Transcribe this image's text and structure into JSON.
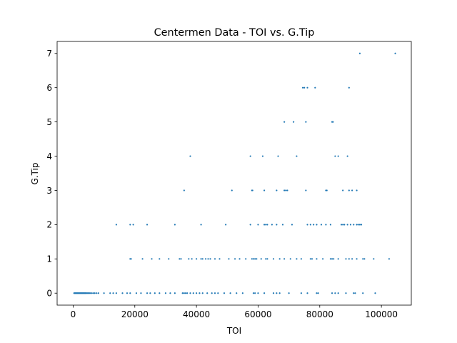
{
  "chart_data": {
    "type": "scatter",
    "title": "Centermen Data - TOI vs. G.Tip",
    "xlabel": "TOI",
    "ylabel": "G.Tip",
    "xlim": [
      -5200,
      109700
    ],
    "ylim": [
      -0.35,
      7.35
    ],
    "xticks": [
      0,
      20000,
      40000,
      60000,
      80000,
      100000
    ],
    "yticks": [
      0,
      1,
      2,
      3,
      4,
      5,
      6,
      7
    ],
    "grid": false,
    "marker_color": "#1f77b4",
    "series": [
      {
        "points": [
          [
            300,
            0
          ],
          [
            500,
            0
          ],
          [
            700,
            0
          ],
          [
            900,
            0
          ],
          [
            1100,
            0
          ],
          [
            1300,
            0
          ],
          [
            1500,
            0
          ],
          [
            1700,
            0
          ],
          [
            1900,
            0
          ],
          [
            2100,
            0
          ],
          [
            2300,
            0
          ],
          [
            2500,
            0
          ],
          [
            2700,
            0
          ],
          [
            2900,
            0
          ],
          [
            3100,
            0
          ],
          [
            3300,
            0
          ],
          [
            3500,
            0
          ],
          [
            3700,
            0
          ],
          [
            3900,
            0
          ],
          [
            4100,
            0
          ],
          [
            4300,
            0
          ],
          [
            4600,
            0
          ],
          [
            4900,
            0
          ],
          [
            5200,
            0
          ],
          [
            5500,
            0
          ],
          [
            6000,
            0
          ],
          [
            6500,
            0
          ],
          [
            7000,
            0
          ],
          [
            7600,
            0
          ],
          [
            8200,
            0
          ],
          [
            10000,
            0
          ],
          [
            12000,
            0
          ],
          [
            13000,
            0
          ],
          [
            14000,
            0
          ],
          [
            16000,
            0
          ],
          [
            17500,
            0
          ],
          [
            18500,
            0
          ],
          [
            20500,
            0
          ],
          [
            22000,
            0
          ],
          [
            24000,
            0
          ],
          [
            25000,
            0
          ],
          [
            26500,
            0
          ],
          [
            28000,
            0
          ],
          [
            30000,
            0
          ],
          [
            31500,
            0
          ],
          [
            33000,
            0
          ],
          [
            35500,
            0
          ],
          [
            36000,
            0
          ],
          [
            36500,
            0
          ],
          [
            37000,
            0
          ],
          [
            38000,
            0
          ],
          [
            39000,
            0
          ],
          [
            40000,
            0
          ],
          [
            41000,
            0
          ],
          [
            42000,
            0
          ],
          [
            43500,
            0
          ],
          [
            45000,
            0
          ],
          [
            46000,
            0
          ],
          [
            47000,
            0
          ],
          [
            49000,
            0
          ],
          [
            51000,
            0
          ],
          [
            53000,
            0
          ],
          [
            55000,
            0
          ],
          [
            58500,
            0
          ],
          [
            59000,
            0
          ],
          [
            60000,
            0
          ],
          [
            62000,
            0
          ],
          [
            65000,
            0
          ],
          [
            66000,
            0
          ],
          [
            67000,
            0
          ],
          [
            70000,
            0
          ],
          [
            74000,
            0
          ],
          [
            76000,
            0
          ],
          [
            79000,
            0
          ],
          [
            79500,
            0
          ],
          [
            84000,
            0
          ],
          [
            85000,
            0
          ],
          [
            86000,
            0
          ],
          [
            88500,
            0
          ],
          [
            91000,
            0
          ],
          [
            91500,
            0
          ],
          [
            94000,
            0
          ],
          [
            98000,
            0
          ],
          [
            18500,
            1
          ],
          [
            18800,
            1
          ],
          [
            22500,
            1
          ],
          [
            25500,
            1
          ],
          [
            28000,
            1
          ],
          [
            31000,
            1
          ],
          [
            34500,
            1
          ],
          [
            35000,
            1
          ],
          [
            37500,
            1
          ],
          [
            38500,
            1
          ],
          [
            40000,
            1
          ],
          [
            41500,
            1
          ],
          [
            42000,
            1
          ],
          [
            43000,
            1
          ],
          [
            43800,
            1
          ],
          [
            44500,
            1
          ],
          [
            46000,
            1
          ],
          [
            47500,
            1
          ],
          [
            50500,
            1
          ],
          [
            52500,
            1
          ],
          [
            54000,
            1
          ],
          [
            56000,
            1
          ],
          [
            58000,
            1
          ],
          [
            58500,
            1
          ],
          [
            59000,
            1
          ],
          [
            59500,
            1
          ],
          [
            61000,
            1
          ],
          [
            62500,
            1
          ],
          [
            63000,
            1
          ],
          [
            65000,
            1
          ],
          [
            67000,
            1
          ],
          [
            68500,
            1
          ],
          [
            70500,
            1
          ],
          [
            72500,
            1
          ],
          [
            74000,
            1
          ],
          [
            77000,
            1
          ],
          [
            77500,
            1
          ],
          [
            79000,
            1
          ],
          [
            81000,
            1
          ],
          [
            83500,
            1
          ],
          [
            84000,
            1
          ],
          [
            84500,
            1
          ],
          [
            86000,
            1
          ],
          [
            88500,
            1
          ],
          [
            89500,
            1
          ],
          [
            90500,
            1
          ],
          [
            92000,
            1
          ],
          [
            94000,
            1
          ],
          [
            94500,
            1
          ],
          [
            97500,
            1
          ],
          [
            102500,
            1
          ],
          [
            14000,
            2
          ],
          [
            18500,
            2
          ],
          [
            19500,
            2
          ],
          [
            24000,
            2
          ],
          [
            33000,
            2
          ],
          [
            41500,
            2
          ],
          [
            49500,
            2
          ],
          [
            57500,
            2
          ],
          [
            60000,
            2
          ],
          [
            62000,
            2
          ],
          [
            62500,
            2
          ],
          [
            63000,
            2
          ],
          [
            64500,
            2
          ],
          [
            66000,
            2
          ],
          [
            68000,
            2
          ],
          [
            71000,
            2
          ],
          [
            76000,
            2
          ],
          [
            77000,
            2
          ],
          [
            78000,
            2
          ],
          [
            79000,
            2
          ],
          [
            80500,
            2
          ],
          [
            82000,
            2
          ],
          [
            83500,
            2
          ],
          [
            87000,
            2
          ],
          [
            87500,
            2
          ],
          [
            88000,
            2
          ],
          [
            89000,
            2
          ],
          [
            90000,
            2
          ],
          [
            91000,
            2
          ],
          [
            92000,
            2
          ],
          [
            92500,
            2
          ],
          [
            93000,
            2
          ],
          [
            93500,
            2
          ],
          [
            36000,
            3
          ],
          [
            51500,
            3
          ],
          [
            58000,
            3
          ],
          [
            58200,
            3
          ],
          [
            62000,
            3
          ],
          [
            66000,
            3
          ],
          [
            68500,
            3
          ],
          [
            69000,
            3
          ],
          [
            69500,
            3
          ],
          [
            75500,
            3
          ],
          [
            82000,
            3
          ],
          [
            82300,
            3
          ],
          [
            87500,
            3
          ],
          [
            89500,
            3
          ],
          [
            90500,
            3
          ],
          [
            92000,
            3
          ],
          [
            38000,
            4
          ],
          [
            57500,
            4
          ],
          [
            61500,
            4
          ],
          [
            66500,
            4
          ],
          [
            72500,
            4
          ],
          [
            85000,
            4
          ],
          [
            86000,
            4
          ],
          [
            89000,
            4
          ],
          [
            68500,
            5
          ],
          [
            71500,
            5
          ],
          [
            75500,
            5
          ],
          [
            84000,
            5
          ],
          [
            84300,
            5
          ],
          [
            74500,
            6
          ],
          [
            75000,
            6
          ],
          [
            76000,
            6
          ],
          [
            78500,
            6
          ],
          [
            89500,
            6
          ],
          [
            93000,
            7
          ],
          [
            104500,
            7
          ]
        ]
      }
    ]
  }
}
